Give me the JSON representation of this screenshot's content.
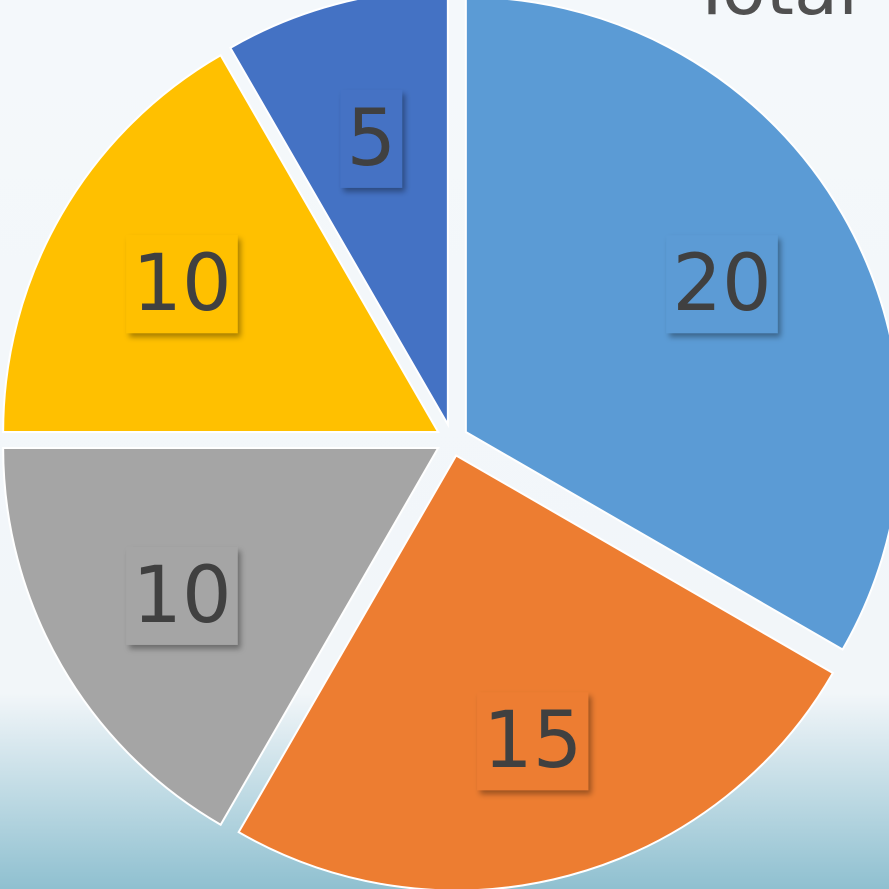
{
  "chart_data": {
    "type": "pie",
    "title": "Total",
    "values": [
      20,
      15,
      10,
      10,
      5
    ],
    "colors": [
      "#5b9bd5",
      "#ed7d31",
      "#a5a5a5",
      "#ffc000",
      "#4472c4"
    ]
  }
}
